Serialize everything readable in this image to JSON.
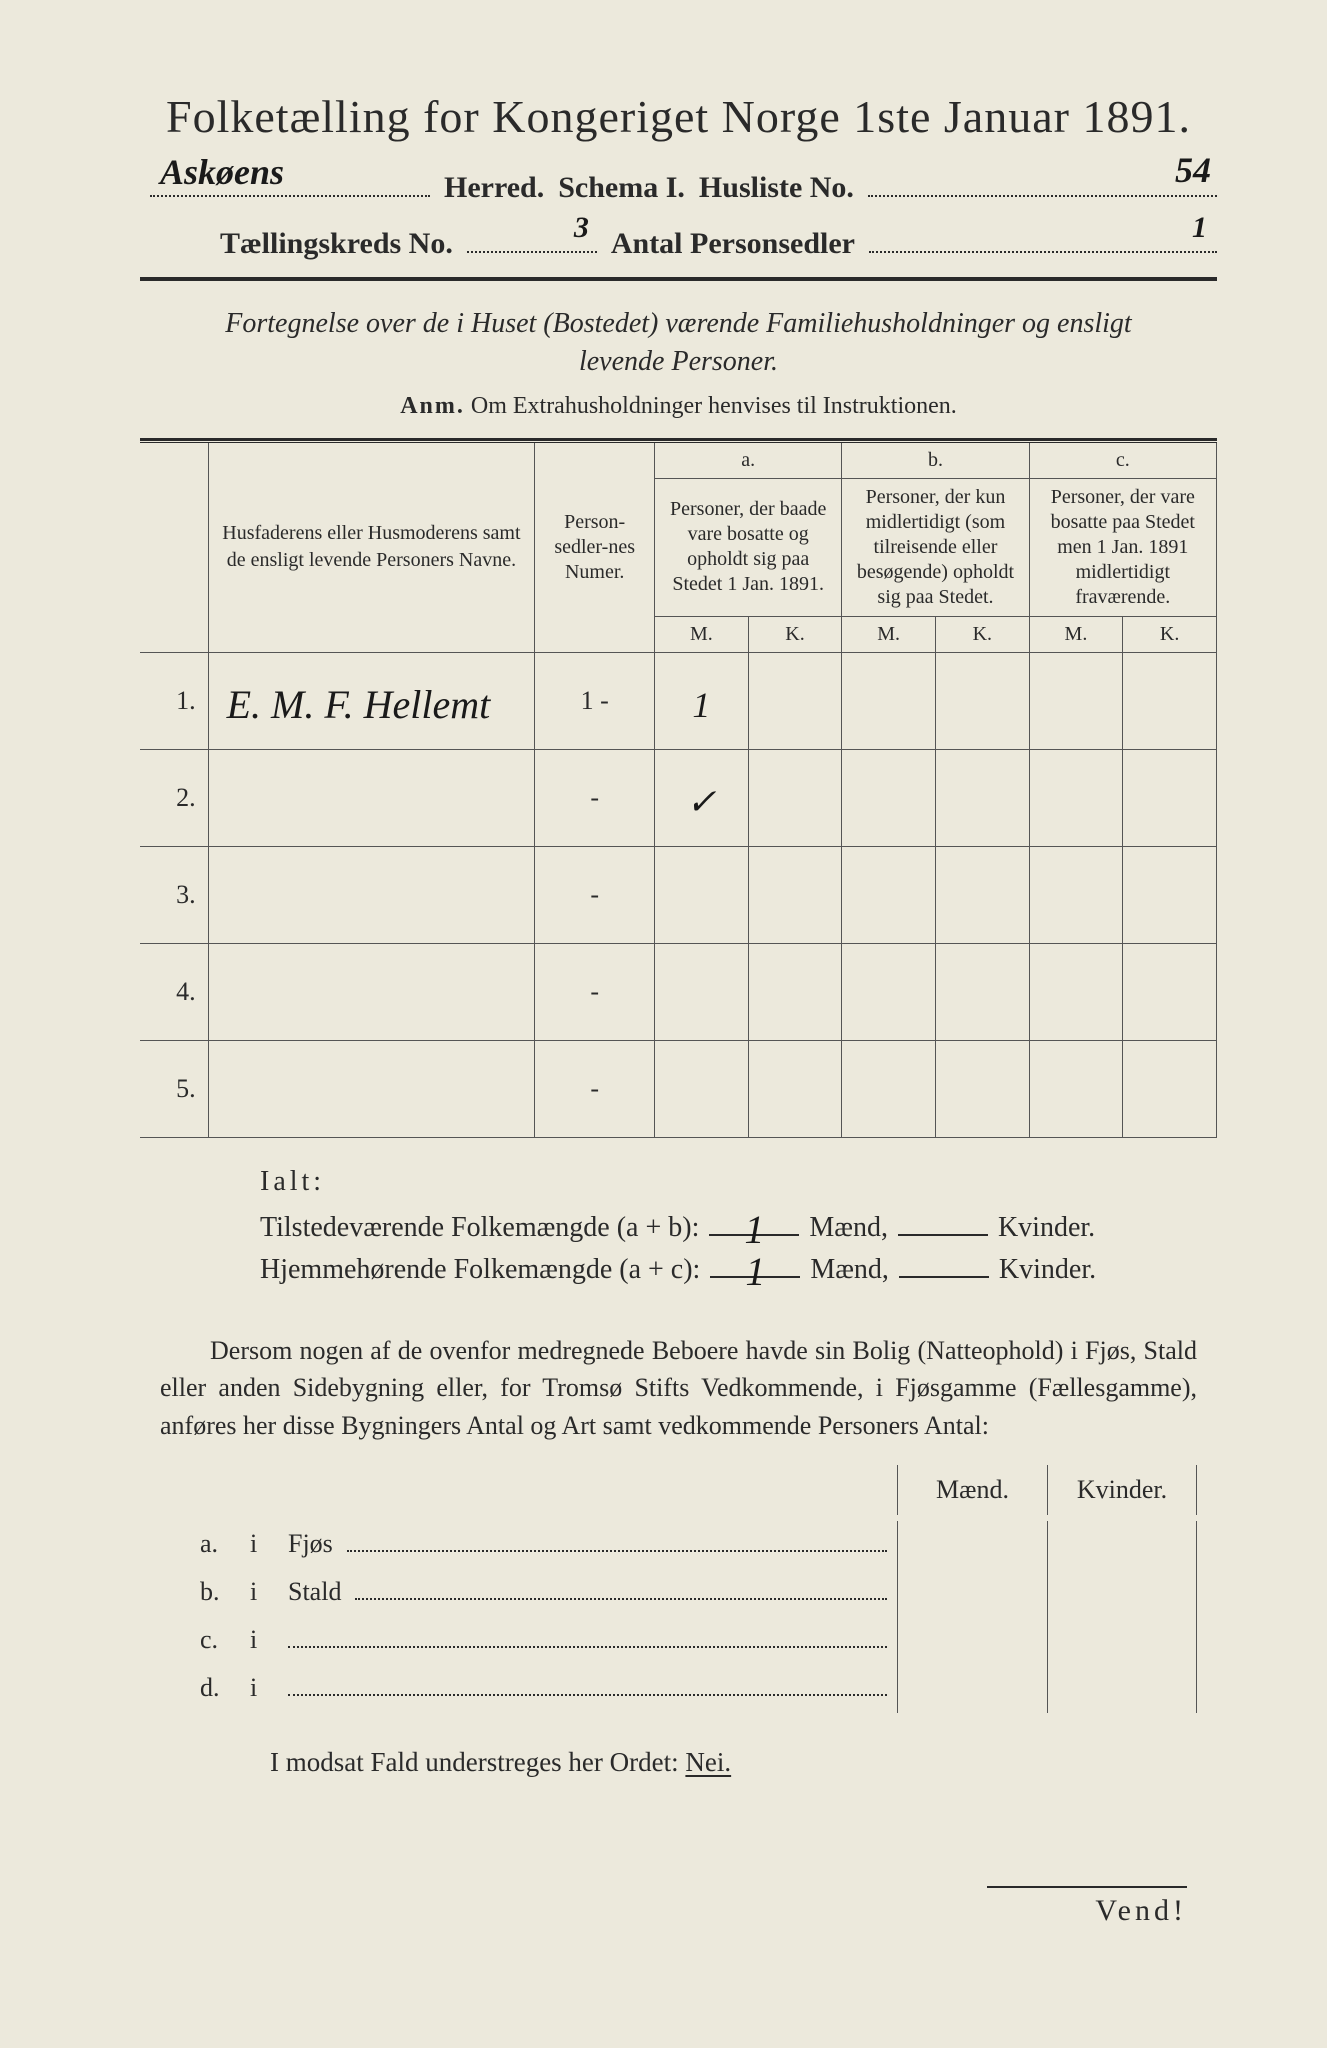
{
  "colors": {
    "paper": "#ece9dc",
    "ink": "#2a2a2a",
    "rule": "#555555"
  },
  "header": {
    "title": "Folketælling for Kongeriget Norge 1ste Januar 1891.",
    "herred_value": "Askøens",
    "herred_label": "Herred.",
    "schema": "Schema I.",
    "husliste_label": "Husliste No.",
    "husliste_value": "54",
    "kreds_label": "Tællingskreds No.",
    "kreds_value": "3",
    "antal_label": "Antal Personsedler",
    "antal_value": "1"
  },
  "subtitle": "Fortegnelse over de i Huset (Bostedet) værende Familiehusholdninger og ensligt levende Personer.",
  "anm": {
    "prefix": "Anm.",
    "text": "Om Extrahusholdninger henvises til Instruktionen."
  },
  "table": {
    "col_names": "Husfaderens eller Husmoderens samt de ensligt levende Personers Navne.",
    "col_nums": "Person-sedler-nes Numer.",
    "a_head": "a.",
    "a_text": "Personer, der baade vare bosatte og opholdt sig paa Stedet 1 Jan. 1891.",
    "b_head": "b.",
    "b_text": "Personer, der kun midlertidigt (som tilreisende eller besøgende) opholdt sig paa Stedet.",
    "c_head": "c.",
    "c_text": "Personer, der vare bosatte paa Stedet men 1 Jan. 1891 midlertidigt fraværende.",
    "M": "M.",
    "K": "K.",
    "rows": [
      {
        "n": "1.",
        "name": "E. M. F. Hellemt",
        "nums": "1 -",
        "aM": "1",
        "aK": "",
        "bM": "",
        "bK": "",
        "cM": "",
        "cK": ""
      },
      {
        "n": "2.",
        "name": "",
        "nums": "-",
        "aM": "✓",
        "aK": "",
        "bM": "",
        "bK": "",
        "cM": "",
        "cK": ""
      },
      {
        "n": "3.",
        "name": "",
        "nums": "-",
        "aM": "",
        "aK": "",
        "bM": "",
        "bK": "",
        "cM": "",
        "cK": ""
      },
      {
        "n": "4.",
        "name": "",
        "nums": "-",
        "aM": "",
        "aK": "",
        "bM": "",
        "bK": "",
        "cM": "",
        "cK": ""
      },
      {
        "n": "5.",
        "name": "",
        "nums": "-",
        "aM": "",
        "aK": "",
        "bM": "",
        "bK": "",
        "cM": "",
        "cK": ""
      }
    ]
  },
  "ialt": {
    "label": "Ialt:",
    "line1_label": "Tilstedeværende Folkemængde (a + b):",
    "line2_label": "Hjemmehørende Folkemængde (a + c):",
    "maend": "Mænd,",
    "kvinder": "Kvinder.",
    "line1_m": "1",
    "line1_k": "",
    "line2_m": "1",
    "line2_k": ""
  },
  "para": "Dersom nogen af de ovenfor medregnede Beboere havde sin Bolig (Natteophold) i Fjøs, Stald eller anden Sidebygning eller, for Tromsø Stifts Vedkommende, i Fjøsgamme (Fællesgamme), anføres her disse Bygningers Antal og Art samt vedkommende Personers Antal:",
  "bottom": {
    "maend": "Mænd.",
    "kvinder": "Kvinder.",
    "rows": [
      {
        "letter": "a.",
        "i": "i",
        "label": "Fjøs"
      },
      {
        "letter": "b.",
        "i": "i",
        "label": "Stald"
      },
      {
        "letter": "c.",
        "i": "i",
        "label": ""
      },
      {
        "letter": "d.",
        "i": "i",
        "label": ""
      }
    ]
  },
  "nei": {
    "text_before": "I modsat Fald understreges her Ordet: ",
    "word": "Nei."
  },
  "vend": "Vend!"
}
